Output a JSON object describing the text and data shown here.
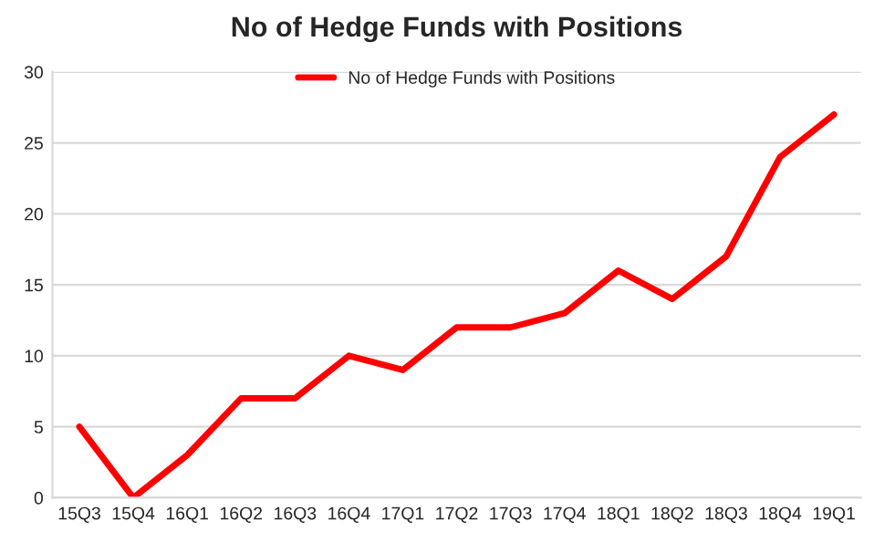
{
  "chart_data": {
    "type": "line",
    "title": "No of Hedge Funds with Positions",
    "categories": [
      "15Q3",
      "15Q4",
      "16Q1",
      "16Q2",
      "16Q3",
      "16Q4",
      "17Q1",
      "17Q2",
      "17Q3",
      "17Q4",
      "18Q1",
      "18Q2",
      "18Q3",
      "18Q4",
      "19Q1"
    ],
    "series": [
      {
        "name": "No of Hedge Funds with Positions",
        "color": "#ff0000",
        "values": [
          5,
          0,
          3,
          7,
          7,
          10,
          9,
          12,
          12,
          13,
          16,
          14,
          17,
          24,
          27
        ]
      }
    ],
    "ylim": [
      0,
      30
    ],
    "yticks": [
      0,
      5,
      10,
      15,
      20,
      25,
      30
    ],
    "grid": "y",
    "legend": "top",
    "marker": "none",
    "line_style": "solid"
  }
}
